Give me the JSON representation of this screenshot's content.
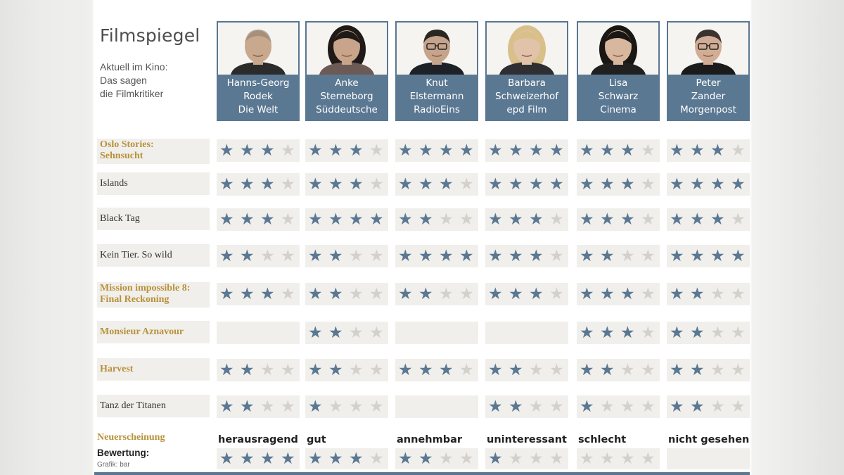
{
  "title": "Filmspiegel",
  "subtitle": "Aktuell im Kino:\nDas sagen\ndie Filmkritiker",
  "colors": {
    "accent": "#5b7892",
    "star_on": "#5b7892",
    "star_off": "#d4d1cc",
    "new_release": "#b8923a",
    "cell_bg": "#f1efec"
  },
  "critics": [
    {
      "name1": "Hanns-Georg",
      "name2": "Rodek",
      "outlet": "Die Welt"
    },
    {
      "name1": "Anke",
      "name2": "Sterneborg",
      "outlet": "Süddeutsche"
    },
    {
      "name1": "Knut",
      "name2": "Elstermann",
      "outlet": "RadioEins"
    },
    {
      "name1": "Barbara",
      "name2": "Schweizerhof",
      "outlet": "epd Film"
    },
    {
      "name1": "Lisa",
      "name2": "Schwarz",
      "outlet": "Cinema"
    },
    {
      "name1": "Peter",
      "name2": "Zander",
      "outlet": "Morgenpost"
    }
  ],
  "movies": [
    {
      "title": "Oslo Stories:\nSehnsucht",
      "new_release": true,
      "ratings": [
        3,
        3,
        4,
        4,
        3,
        3
      ]
    },
    {
      "title": "Islands",
      "new_release": false,
      "ratings": [
        3,
        3,
        3,
        4,
        3,
        4
      ]
    },
    {
      "title": "Black Tag",
      "new_release": false,
      "ratings": [
        3,
        4,
        2,
        3,
        3,
        3
      ]
    },
    {
      "title": "Kein Tier. So wild",
      "new_release": false,
      "ratings": [
        2,
        2,
        4,
        3,
        2,
        4
      ]
    },
    {
      "title": "Mission impossible 8:\nFinal Reckoning",
      "new_release": true,
      "ratings": [
        3,
        2,
        2,
        3,
        3,
        2
      ]
    },
    {
      "title": "Monsieur Aznavour",
      "new_release": true,
      "ratings": [
        null,
        2,
        null,
        null,
        3,
        2
      ]
    },
    {
      "title": "Harvest",
      "new_release": true,
      "ratings": [
        2,
        2,
        3,
        2,
        2,
        2
      ]
    },
    {
      "title": "Tanz der Titanen",
      "new_release": false,
      "ratings": [
        2,
        1,
        null,
        2,
        1,
        2
      ]
    }
  ],
  "legend": {
    "new_release_label": "Neuerscheinung",
    "rating_label": "Bewertung:",
    "credit": "Grafik: bar",
    "scale": [
      {
        "label": "herausragend",
        "stars": 4
      },
      {
        "label": "gut",
        "stars": 3
      },
      {
        "label": "annehmbar",
        "stars": 2
      },
      {
        "label": "uninteressant",
        "stars": 1
      },
      {
        "label": "schlecht",
        "stars": 0
      },
      {
        "label": "nicht gesehen",
        "stars": null
      }
    ]
  }
}
